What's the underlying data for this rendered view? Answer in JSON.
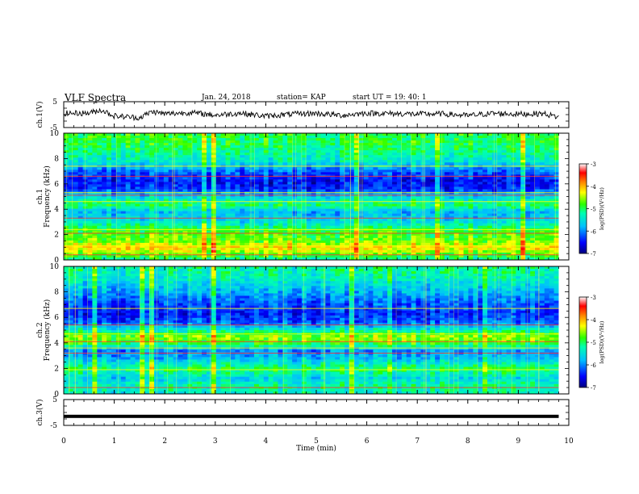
{
  "header": {
    "title": "VLF Spectra",
    "date": "Jan. 24, 2018",
    "station": "station= KAP",
    "start": "start  UT =   19: 40: 1"
  },
  "colors": {
    "colormap": [
      "#00007f",
      "#0000ff",
      "#00bfff",
      "#00ffb0",
      "#2bff00",
      "#ffff00",
      "#ff7f00",
      "#ff0000",
      "#ffffff"
    ]
  },
  "chart_data": [
    {
      "type": "line",
      "panel": "ch1-waveform",
      "ylabel": "ch.1(V)",
      "ylim": [
        -5,
        5
      ],
      "yticks": [
        "5",
        "-5"
      ],
      "x": [
        0,
        0.5,
        0.75,
        1,
        1.5,
        1.75,
        2,
        2.5,
        3,
        3.5,
        4,
        4.5,
        5,
        5.5,
        6,
        6.5,
        7,
        7.5,
        8,
        8.5,
        9,
        9.5,
        9.8
      ],
      "y": [
        0.5,
        0.6,
        1.8,
        -0.5,
        -1.2,
        1.2,
        0.3,
        0.8,
        -0.2,
        0.6,
        -0.6,
        0.2,
        0.5,
        -0.3,
        0.6,
        0.4,
        0.2,
        0.3,
        -0.4,
        0.5,
        0.2,
        0.4,
        -1.0
      ]
    },
    {
      "type": "heatmap",
      "panel": "ch1-spectrogram",
      "ylabel_line1": "ch.1",
      "ylabel_line2": "Frequency (kHz)",
      "ylim": [
        0,
        10
      ],
      "yticks": [
        "0",
        "2",
        "4",
        "6",
        "8",
        "10"
      ],
      "color_range": [
        -7,
        -3
      ],
      "colorbar_label": "log(PSD)(V²/Hz)",
      "colorbar_ticks": [
        "-3",
        "-4",
        "-5",
        "-6",
        "-7"
      ],
      "band_profile_kHz": [
        {
          "freq": 0.0,
          "level": 0.45
        },
        {
          "freq": 0.6,
          "level": 0.62
        },
        {
          "freq": 1.0,
          "level": 0.72
        },
        {
          "freq": 1.5,
          "level": 0.58
        },
        {
          "freq": 2.3,
          "level": 0.55
        },
        {
          "freq": 3.0,
          "level": 0.38
        },
        {
          "freq": 3.8,
          "level": 0.3
        },
        {
          "freq": 4.3,
          "level": 0.5
        },
        {
          "freq": 5.0,
          "level": 0.35
        },
        {
          "freq": 5.6,
          "level": 0.15
        },
        {
          "freq": 6.2,
          "level": 0.12
        },
        {
          "freq": 7.0,
          "level": 0.22
        },
        {
          "freq": 7.8,
          "level": 0.4
        },
        {
          "freq": 9.0,
          "level": 0.5
        },
        {
          "freq": 10.0,
          "level": 0.52
        }
      ],
      "lines_kHz": [
        0.4,
        1.1,
        2.1,
        2.4,
        3.3,
        4.6,
        5.1,
        5.3,
        6.6,
        7.4
      ]
    },
    {
      "type": "heatmap",
      "panel": "ch2-spectrogram",
      "ylabel_line1": "ch.2",
      "ylabel_line2": "Frequency (kHz)",
      "ylim": [
        0,
        10
      ],
      "yticks": [
        "0",
        "2",
        "4",
        "6",
        "8",
        "10"
      ],
      "color_range": [
        -7,
        -3
      ],
      "colorbar_label": "log(PSD)(V²/Hz)",
      "colorbar_ticks": [
        "-3",
        "-4",
        "-5",
        "-6",
        "-7"
      ],
      "band_profile_kHz": [
        {
          "freq": 0.0,
          "level": 0.4
        },
        {
          "freq": 0.6,
          "level": 0.45
        },
        {
          "freq": 1.2,
          "level": 0.35
        },
        {
          "freq": 2.0,
          "level": 0.5
        },
        {
          "freq": 2.8,
          "level": 0.3
        },
        {
          "freq": 3.4,
          "level": 0.25
        },
        {
          "freq": 4.0,
          "level": 0.55
        },
        {
          "freq": 4.5,
          "level": 0.6
        },
        {
          "freq": 5.0,
          "level": 0.42
        },
        {
          "freq": 5.6,
          "level": 0.2
        },
        {
          "freq": 6.3,
          "level": 0.14
        },
        {
          "freq": 7.2,
          "level": 0.2
        },
        {
          "freq": 8.2,
          "level": 0.32
        },
        {
          "freq": 9.2,
          "level": 0.42
        },
        {
          "freq": 10.0,
          "level": 0.45
        }
      ],
      "lines_kHz": [
        0.5,
        1.9,
        3.2,
        3.6,
        4.1,
        4.7,
        5.4,
        6.7
      ]
    },
    {
      "type": "line",
      "panel": "ch3-waveform",
      "ylabel": "ch.3(V)",
      "ylim": [
        -5,
        5
      ],
      "yticks": [
        "5",
        "-5"
      ],
      "x": [
        0,
        9.8
      ],
      "y": [
        -1.5,
        -1.5
      ]
    }
  ],
  "time_axis": {
    "xlabel": "Time (min)",
    "xlim": [
      0,
      10
    ],
    "ticks": [
      "0",
      "1",
      "2",
      "3",
      "4",
      "5",
      "6",
      "7",
      "8",
      "9",
      "10"
    ]
  }
}
